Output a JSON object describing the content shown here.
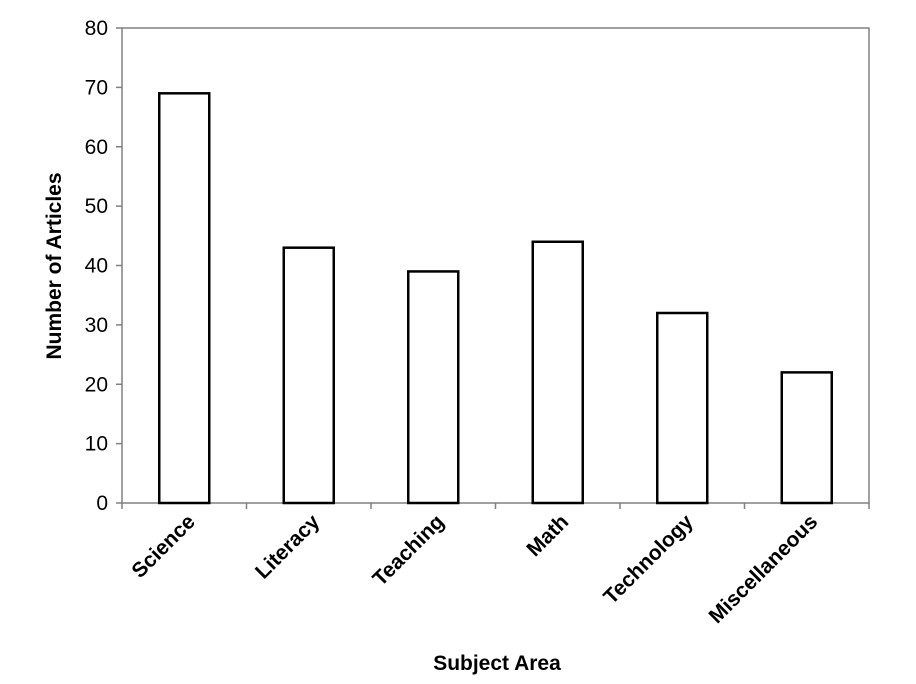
{
  "chart_data": {
    "type": "bar",
    "categories": [
      "Science",
      "Literacy",
      "Teaching",
      "Math",
      "Technology",
      "Miscellaneous"
    ],
    "values": [
      69,
      43,
      39,
      44,
      32,
      22
    ],
    "title": "",
    "xlabel": "Subject Area",
    "ylabel": "Number of Articles",
    "ylim": [
      0,
      80
    ],
    "yticks": [
      0,
      10,
      20,
      30,
      40,
      50,
      60,
      70,
      80
    ],
    "grid": false,
    "bar_fill": "#ffffff",
    "bar_stroke": "#000000",
    "axis_color": "#808080"
  }
}
